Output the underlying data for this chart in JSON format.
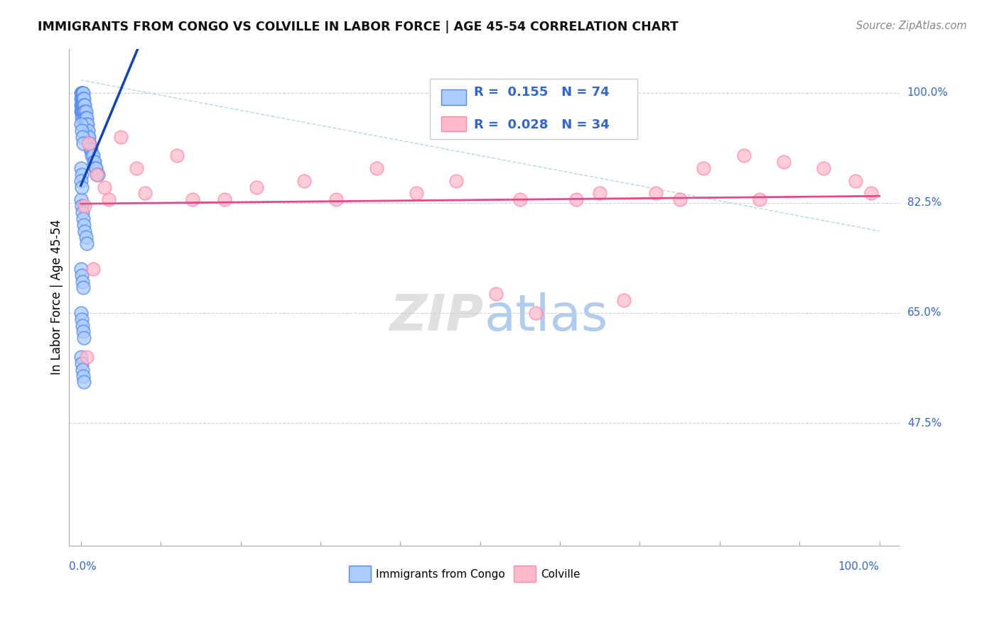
{
  "title": "IMMIGRANTS FROM CONGO VS COLVILLE IN LABOR FORCE | AGE 45-54 CORRELATION CHART",
  "source": "Source: ZipAtlas.com",
  "ylabel": "In Labor Force | Age 45-54",
  "y_tick_labels": [
    "100.0%",
    "82.5%",
    "65.0%",
    "47.5%"
  ],
  "y_tick_values": [
    1.0,
    0.825,
    0.65,
    0.475
  ],
  "xmin": 0.0,
  "xmax": 1.0,
  "ymin": 0.28,
  "ymax": 1.07,
  "blue_face": "#aaccff",
  "blue_edge": "#5588ee",
  "pink_face": "#ffbbcc",
  "pink_edge": "#ff88aa",
  "blue_line": "#1144bb",
  "pink_line": "#ee4488",
  "ref_line_color": "#aaccdd",
  "grid_color": "#cccccc",
  "watermark_color": "#dddddd",
  "title_color": "#111111",
  "source_color": "#888888",
  "axis_label_color": "#3366cc",
  "n_blue": 74,
  "n_pink": 34,
  "blue_R": 0.155,
  "pink_R": 0.028,
  "blue_dots_x": [
    0.0,
    0.0,
    0.0,
    0.0,
    0.001,
    0.001,
    0.001,
    0.001,
    0.001,
    0.002,
    0.002,
    0.002,
    0.002,
    0.003,
    0.003,
    0.003,
    0.003,
    0.003,
    0.004,
    0.004,
    0.004,
    0.005,
    0.005,
    0.005,
    0.006,
    0.006,
    0.007,
    0.007,
    0.008,
    0.009,
    0.009,
    0.01,
    0.01,
    0.011,
    0.012,
    0.013,
    0.014,
    0.015,
    0.016,
    0.017,
    0.018,
    0.019,
    0.02,
    0.022,
    0.0,
    0.001,
    0.002,
    0.003,
    0.0,
    0.001,
    0.0,
    0.001,
    0.002,
    0.003,
    0.004,
    0.005,
    0.006,
    0.007,
    0.0,
    0.001,
    0.002,
    0.003,
    0.0,
    0.001,
    0.002,
    0.003,
    0.004,
    0.0,
    0.001,
    0.002,
    0.003,
    0.004,
    0.0,
    0.001
  ],
  "blue_dots_y": [
    1.0,
    0.99,
    0.98,
    0.97,
    1.0,
    0.99,
    0.98,
    0.97,
    0.96,
    1.0,
    0.99,
    0.98,
    0.97,
    1.0,
    0.99,
    0.98,
    0.97,
    0.96,
    0.99,
    0.98,
    0.97,
    0.98,
    0.97,
    0.96,
    0.97,
    0.96,
    0.96,
    0.95,
    0.95,
    0.94,
    0.93,
    0.93,
    0.92,
    0.92,
    0.91,
    0.91,
    0.9,
    0.9,
    0.89,
    0.89,
    0.88,
    0.88,
    0.87,
    0.87,
    0.95,
    0.94,
    0.93,
    0.92,
    0.88,
    0.87,
    0.83,
    0.82,
    0.81,
    0.8,
    0.79,
    0.78,
    0.77,
    0.76,
    0.72,
    0.71,
    0.7,
    0.69,
    0.65,
    0.64,
    0.63,
    0.62,
    0.61,
    0.58,
    0.57,
    0.56,
    0.55,
    0.54,
    0.86,
    0.85
  ],
  "pink_dots_x": [
    0.01,
    0.02,
    0.05,
    0.07,
    0.12,
    0.18,
    0.28,
    0.37,
    0.47,
    0.52,
    0.57,
    0.62,
    0.68,
    0.72,
    0.78,
    0.83,
    0.88,
    0.93,
    0.97,
    0.99,
    0.005,
    0.03,
    0.08,
    0.14,
    0.22,
    0.32,
    0.42,
    0.55,
    0.65,
    0.75,
    0.85,
    0.007,
    0.015,
    0.035
  ],
  "pink_dots_y": [
    0.92,
    0.87,
    0.93,
    0.88,
    0.9,
    0.83,
    0.86,
    0.88,
    0.86,
    0.68,
    0.65,
    0.83,
    0.67,
    0.84,
    0.88,
    0.9,
    0.89,
    0.88,
    0.86,
    0.84,
    0.82,
    0.85,
    0.84,
    0.83,
    0.85,
    0.83,
    0.84,
    0.83,
    0.84,
    0.83,
    0.83,
    0.58,
    0.72,
    0.83
  ]
}
